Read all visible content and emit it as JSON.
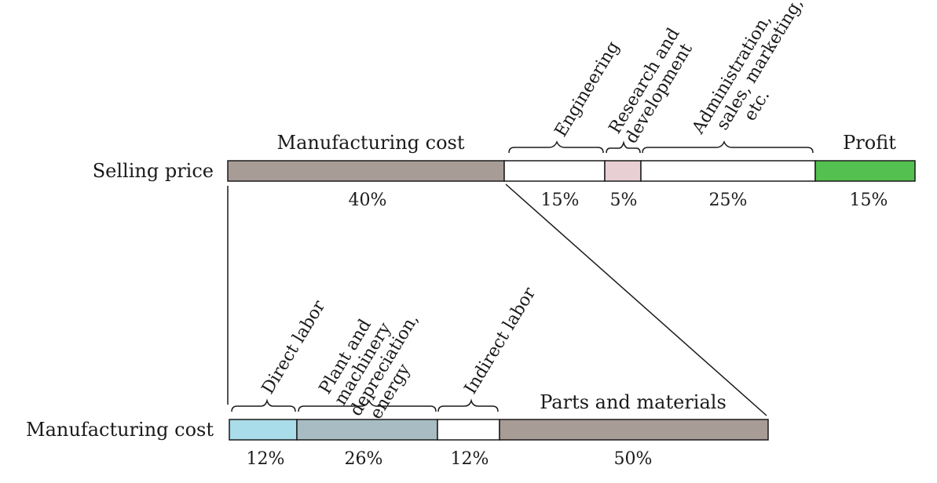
{
  "selling": {
    "row_label": "Selling price",
    "segments": [
      {
        "label": "Manufacturing cost",
        "percent": "40%",
        "value": 40,
        "color": "#a89c97"
      },
      {
        "label": "Engineering",
        "percent": "15%",
        "value": 15,
        "color": "#ffffff"
      },
      {
        "label": "Research and development",
        "percent": "5%",
        "value": 5,
        "color": "#e8cfd3"
      },
      {
        "label": "Administration, sales, marketing, etc.",
        "percent": "25%",
        "value": 25,
        "color": "#ffffff"
      },
      {
        "label": "Profit",
        "percent": "15%",
        "value": 15,
        "color": "#53c04f"
      }
    ],
    "top_labels": {
      "manufacturing": "Manufacturing cost",
      "profit": "Profit",
      "engineering": [
        "Engineering"
      ],
      "rnd": [
        "Research and",
        "development"
      ],
      "admin": [
        "Administration,",
        "sales, marketing,",
        "etc."
      ]
    }
  },
  "manufacturing": {
    "row_label": "Manufacturing cost",
    "segments": [
      {
        "label": "Direct labor",
        "percent": "12%",
        "value": 12,
        "color": "#a9dde9"
      },
      {
        "label": "Plant and machinery depreciation, energy",
        "percent": "26%",
        "value": 26,
        "color": "#a8bcc3"
      },
      {
        "label": "Indirect labor",
        "percent": "12%",
        "value": 12,
        "color": "#ffffff"
      },
      {
        "label": "Parts and materials",
        "percent": "50%",
        "value": 50,
        "color": "#a89c97"
      }
    ],
    "top_labels": {
      "parts": "Parts and materials",
      "direct": [
        "Direct labor"
      ],
      "plant": [
        "Plant and",
        "machinery",
        "depreciation,",
        "energy"
      ],
      "indirect": [
        "Indirect labor"
      ]
    }
  }
}
